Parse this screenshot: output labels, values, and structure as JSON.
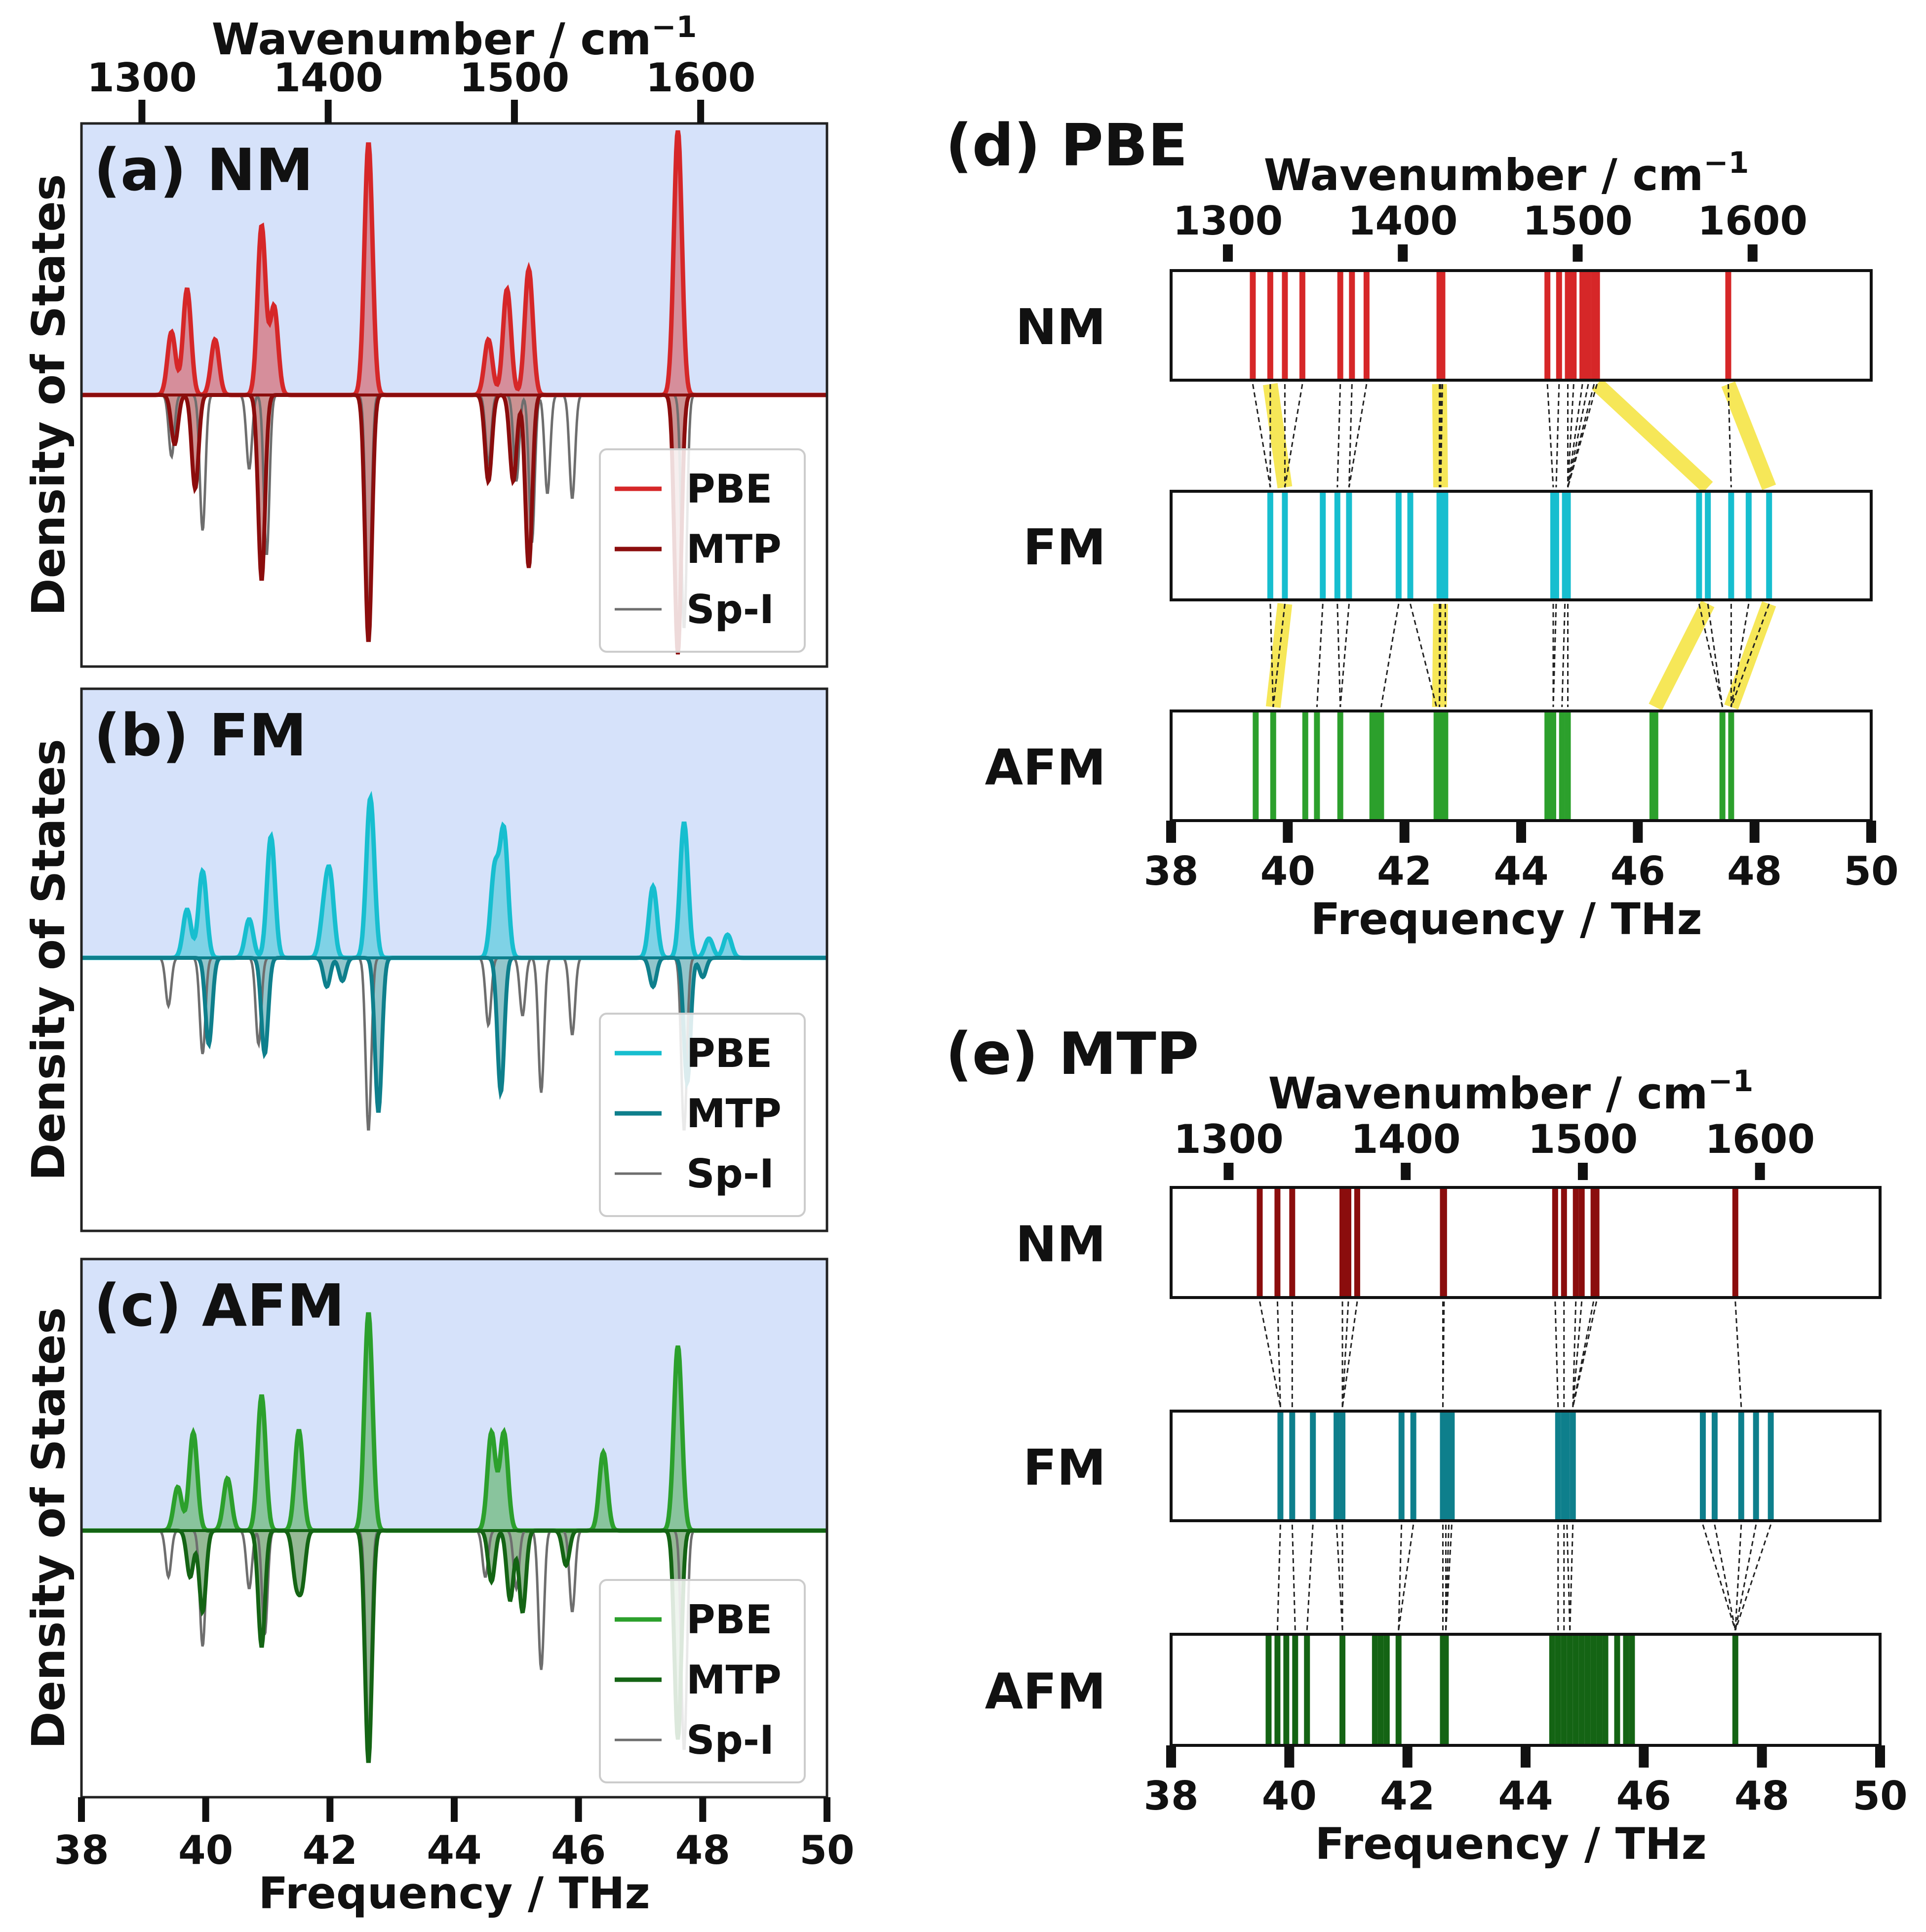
{
  "figure": {
    "top_axis_title": "Wavenumber / cm",
    "top_axis_exponent": "−1",
    "x_axis_title": "Frequency / THz",
    "y_axis_title": "Density of States",
    "freq_ticks": [
      38,
      40,
      42,
      44,
      46,
      48,
      50
    ],
    "wavenumber_ticks": [
      1300,
      1400,
      1500,
      1600
    ],
    "thz_per_cm": 0.0299792458
  },
  "colors": {
    "fill_bg": "#d6e2fa",
    "NM_PBE": "#d62728",
    "NM_MTP": "#8b0d0d",
    "FM_PBE": "#17becf",
    "FM_MTP": "#0e7f8c",
    "AFM_PBE": "#2ca02c",
    "AFM_MTP": "#146414",
    "SpI": "#6e6e6e",
    "highlight": "#f5e33b"
  },
  "chart_data": [
    {
      "type": "area",
      "id": "a",
      "title": "(a) NM",
      "xlabel": "Frequency / THz",
      "ylabel": "Density of States",
      "xlim": [
        38,
        50
      ],
      "legend_position": "bottom-right",
      "series": [
        {
          "name": "PBE",
          "direction": "up",
          "peaks": [
            [
              39.45,
              0.25
            ],
            [
              39.7,
              0.42
            ],
            [
              40.15,
              0.22
            ],
            [
              40.9,
              0.67
            ],
            [
              41.1,
              0.35
            ],
            [
              42.62,
              1.0
            ],
            [
              44.55,
              0.22
            ],
            [
              44.85,
              0.42
            ],
            [
              45.2,
              0.5
            ],
            [
              47.6,
              1.05
            ]
          ]
        },
        {
          "name": "MTP",
          "direction": "down",
          "peaks": [
            [
              39.5,
              0.2
            ],
            [
              39.83,
              0.38
            ],
            [
              40.9,
              0.75
            ],
            [
              42.62,
              1.0
            ],
            [
              44.55,
              0.35
            ],
            [
              44.95,
              0.35
            ],
            [
              45.2,
              0.7
            ],
            [
              47.6,
              1.05
            ]
          ]
        },
        {
          "name": "Sp-I",
          "direction": "down",
          "peaks": [
            [
              39.45,
              0.25
            ],
            [
              39.95,
              0.55
            ],
            [
              40.7,
              0.3
            ],
            [
              40.98,
              0.65
            ],
            [
              42.62,
              0.9
            ],
            [
              44.55,
              0.28
            ],
            [
              45.0,
              0.35
            ],
            [
              45.25,
              0.6
            ],
            [
              45.5,
              0.4
            ],
            [
              45.9,
              0.42
            ],
            [
              47.7,
              0.95
            ]
          ]
        }
      ]
    },
    {
      "type": "area",
      "id": "b",
      "title": "(b) FM",
      "xlabel": "Frequency / THz",
      "ylabel": "Density of States",
      "xlim": [
        38,
        50
      ],
      "legend_position": "bottom-right",
      "series": [
        {
          "name": "PBE",
          "direction": "up",
          "peaks": [
            [
              39.7,
              0.25
            ],
            [
              39.95,
              0.45
            ],
            [
              40.7,
              0.2
            ],
            [
              41.05,
              0.63
            ],
            [
              41.9,
              0.2
            ],
            [
              42.0,
              0.4
            ],
            [
              42.65,
              0.83
            ],
            [
              44.65,
              0.45
            ],
            [
              44.8,
              0.65
            ],
            [
              47.2,
              0.37
            ],
            [
              47.7,
              0.7
            ],
            [
              48.1,
              0.1
            ],
            [
              48.4,
              0.12
            ]
          ]
        },
        {
          "name": "MTP",
          "direction": "down",
          "peaks": [
            [
              40.05,
              0.45
            ],
            [
              40.95,
              0.5
            ],
            [
              41.95,
              0.15
            ],
            [
              42.2,
              0.12
            ],
            [
              42.78,
              0.8
            ],
            [
              44.75,
              0.7
            ],
            [
              47.2,
              0.15
            ],
            [
              47.75,
              0.65
            ],
            [
              48.0,
              0.1
            ]
          ]
        },
        {
          "name": "Sp-I",
          "direction": "down",
          "peaks": [
            [
              39.4,
              0.25
            ],
            [
              39.95,
              0.5
            ],
            [
              40.85,
              0.45
            ],
            [
              42.62,
              0.9
            ],
            [
              44.55,
              0.35
            ],
            [
              45.1,
              0.3
            ],
            [
              45.4,
              0.7
            ],
            [
              45.9,
              0.4
            ],
            [
              47.7,
              0.9
            ]
          ]
        }
      ]
    },
    {
      "type": "area",
      "id": "c",
      "title": "(c) AFM",
      "xlabel": "Frequency / THz",
      "ylabel": "Density of States",
      "xlim": [
        38,
        50
      ],
      "legend_position": "bottom-right",
      "series": [
        {
          "name": "PBE",
          "direction": "up",
          "peaks": [
            [
              39.55,
              0.2
            ],
            [
              39.8,
              0.45
            ],
            [
              40.35,
              0.24
            ],
            [
              40.9,
              0.62
            ],
            [
              41.5,
              0.46
            ],
            [
              42.62,
              1.0
            ],
            [
              44.6,
              0.45
            ],
            [
              44.8,
              0.45
            ],
            [
              46.4,
              0.36
            ],
            [
              47.6,
              0.85
            ]
          ]
        },
        {
          "name": "MTP",
          "direction": "down",
          "peaks": [
            [
              39.75,
              0.2
            ],
            [
              39.95,
              0.35
            ],
            [
              40.9,
              0.5
            ],
            [
              41.45,
              0.2
            ],
            [
              41.55,
              0.22
            ],
            [
              42.62,
              1.0
            ],
            [
              44.6,
              0.22
            ],
            [
              44.9,
              0.3
            ],
            [
              45.1,
              0.35
            ],
            [
              45.8,
              0.15
            ],
            [
              47.6,
              0.9
            ]
          ]
        },
        {
          "name": "Sp-I",
          "direction": "down",
          "peaks": [
            [
              39.4,
              0.2
            ],
            [
              39.95,
              0.5
            ],
            [
              40.7,
              0.25
            ],
            [
              40.95,
              0.45
            ],
            [
              42.62,
              0.9
            ],
            [
              44.5,
              0.2
            ],
            [
              45.0,
              0.25
            ],
            [
              45.4,
              0.6
            ],
            [
              45.9,
              0.35
            ],
            [
              47.7,
              0.95
            ]
          ]
        }
      ]
    },
    {
      "type": "scatter",
      "id": "d",
      "title": "(d) PBE",
      "xlabel": "Frequency / THz",
      "xlim": [
        38,
        50
      ],
      "rows": [
        {
          "name": "NM",
          "modes": [
            39.4,
            39.7,
            39.95,
            40.25,
            40.9,
            41.1,
            41.35,
            42.6,
            42.62,
            42.65,
            44.45,
            44.65,
            44.8,
            44.9,
            45.05,
            45.15,
            45.25,
            45.3,
            47.55
          ]
        },
        {
          "name": "FM",
          "modes": [
            39.7,
            39.95,
            40.6,
            40.85,
            41.05,
            41.9,
            42.1,
            42.6,
            42.62,
            42.7,
            44.55,
            44.6,
            44.75,
            44.8,
            47.05,
            47.2,
            47.6,
            47.9,
            48.25
          ]
        },
        {
          "name": "AFM",
          "modes": [
            39.45,
            39.75,
            40.3,
            40.5,
            40.9,
            41.45,
            41.5,
            41.6,
            42.55,
            42.6,
            42.65,
            42.7,
            44.45,
            44.55,
            44.7,
            44.8,
            46.25,
            46.3,
            47.45,
            47.6
          ]
        }
      ],
      "highlighted_links": [
        [
          39.7,
          39.95
        ],
        [
          42.6,
          42.62
        ],
        [
          45.3,
          47.2
        ],
        [
          47.55,
          48.25
        ],
        [
          39.95,
          39.75
        ],
        [
          42.62,
          42.6
        ],
        [
          47.2,
          46.3
        ],
        [
          48.25,
          47.6
        ]
      ]
    },
    {
      "type": "scatter",
      "id": "e",
      "title": "(e) MTP",
      "xlabel": "Frequency / THz",
      "xlim": [
        38,
        50
      ],
      "rows": [
        {
          "name": "NM",
          "modes": [
            39.5,
            39.8,
            40.05,
            40.9,
            41.0,
            41.15,
            42.6,
            42.62,
            44.5,
            44.65,
            44.85,
            44.95,
            45.15,
            45.2,
            47.55
          ]
        },
        {
          "name": "FM",
          "modes": [
            39.85,
            40.05,
            40.4,
            40.8,
            40.9,
            41.9,
            42.1,
            42.6,
            42.65,
            42.7,
            42.75,
            44.55,
            44.65,
            44.7,
            44.8,
            47.0,
            47.2,
            47.65,
            47.9,
            48.15
          ]
        },
        {
          "name": "AFM",
          "modes": [
            39.65,
            39.8,
            39.95,
            40.1,
            40.3,
            40.9,
            41.45,
            41.55,
            41.65,
            41.85,
            42.6,
            42.65,
            44.45,
            44.55,
            44.65,
            44.75,
            44.85,
            44.95,
            45.05,
            45.15,
            45.25,
            45.35,
            45.55,
            45.7,
            45.8,
            47.55
          ]
        }
      ]
    }
  ]
}
